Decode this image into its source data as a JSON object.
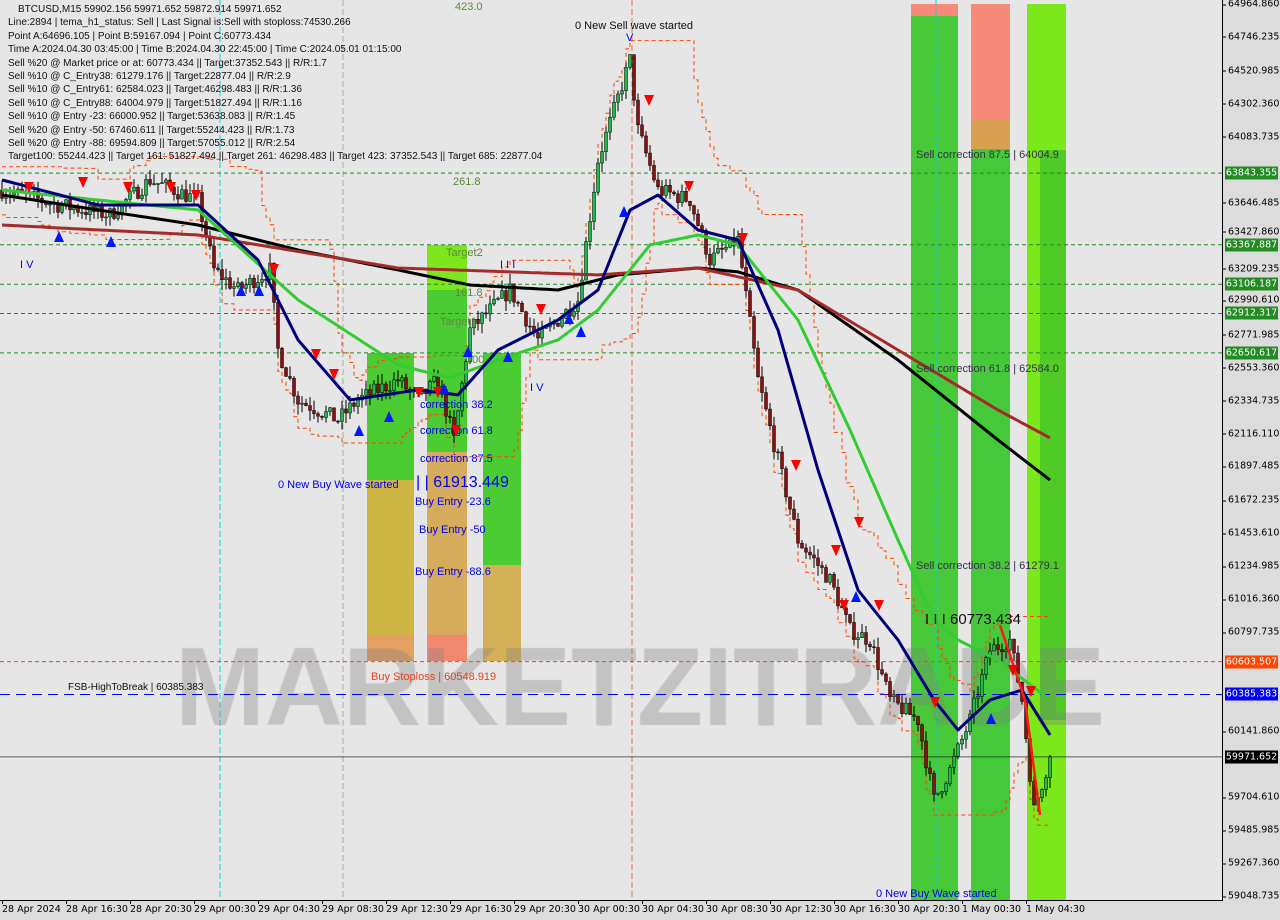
{
  "header": {
    "symbol_line": "BTCUSD,M15  59902.156 59971.652 59872.914 59971.652",
    "lines": [
      "Line:2894 | tema_h1_status: Sell | Last Signal is:Sell with stoploss:74530.266",
      "Point A:64696.105 | Point B:59167.094 | Point C:60773.434",
      "Time A:2024.04.30 03:45:00 | Time B:2024.04.30 22:45:00 | Time C:2024.05.01 01:15:00",
      "Sell %20 @ Market price or at: 60773.434 || Target:37352.543 || R/R:1.7",
      "Sell %10 @ C_Entry38: 61279.176 || Target:22877.04 || R/R:2.9",
      "Sell %10 @ C_Entry61: 62584.023 || Target:46298.483 || R/R:1.36",
      "Sell %10 @ C_Entry88: 64004.979 || Target:51827.494 || R/R:1.16",
      "Sell %10 @ Entry -23: 66000.952 || Target:53638.083 || R/R:1.45",
      "Sell %20 @ Entry -50: 67460.611 || Target:55244.423 || R/R:1.73",
      "Sell %20 @ Entry -88: 69594.809 || Target:57055.012 || R/R:2.54",
      "Target100: 55244.423 || Target 161: 51827.494 || Target 261: 46298.483 || Target 423: 37352.543 || Target 685: 22877.04"
    ]
  },
  "annotations": {
    "new_sell_wave": "0 New Sell wave started",
    "wave_v": "V",
    "fib_423": "423.0",
    "fib_261": "261.8",
    "target2": "Target2",
    "fib_161": "161.8",
    "target1": "Target1",
    "fib_100": "100",
    "wave_iii": "I I I",
    "wave_iv_left": "I V",
    "wave_iv_mid": "I V",
    "correction_38": "correction 38.2",
    "correction_61": "correction 61.8",
    "correction_87": "correction 87.5",
    "new_buy_wave": "0 New Buy Wave started",
    "buy_wave_price": "| | 61913.449",
    "buy_entry_23": "Buy Entry -23.6",
    "buy_entry_50": "Buy Entry -50",
    "buy_entry_88": "Buy Entry -88.6",
    "buy_stoploss": "Buy Stoploss | 60548.919",
    "fsb": "FSB-HighToBreak | 60385.383",
    "sell_corr_87": "Sell correction 87.5 | 64004.9",
    "sell_corr_61": "Sell correction 61.8 | 62584.0",
    "sell_corr_38": "Sell correction 38.2 | 61279.1",
    "wave_iii_price": "I I I 60773.434",
    "new_buy_wave_2": "0 New Buy Wave started"
  },
  "watermark": "MARKETZITRADE",
  "colors": {
    "ma_black": "#000000",
    "ma_brown": "#a52a2a",
    "ma_green": "#33cc33",
    "ma_navy": "#00007a",
    "bull": "#1fb84a",
    "bear": "#8b1010",
    "envelope": "#ff4500",
    "level_green": "#228b22",
    "stoploss": "#ff4500",
    "fsb": "#0000ff",
    "current": "#000000"
  },
  "chart_data": {
    "type": "candlestick",
    "symbol": "BTCUSD",
    "timeframe": "M15",
    "ylim": [
      59048.735,
      64964.86
    ],
    "grid": false,
    "yticks": [
      64964.86,
      64746.235,
      64520.985,
      64302.36,
      64083.735,
      63646.485,
      63427.86,
      63209.235,
      62990.61,
      62771.985,
      62553.36,
      62334.735,
      62116.11,
      61897.485,
      61672.235,
      61453.61,
      61234.985,
      61016.36,
      60797.735,
      60141.86,
      59704.61,
      59485.985,
      59267.36,
      59048.735
    ],
    "xticks": [
      {
        "label": "28 Apr 2024",
        "time": "2024-04-28 12:30"
      },
      {
        "label": "28 Apr 16:30",
        "time": "2024-04-28 16:30"
      },
      {
        "label": "28 Apr 20:30",
        "time": "2024-04-28 20:30"
      },
      {
        "label": "29 Apr 00:30",
        "time": "2024-04-29 00:30"
      },
      {
        "label": "29 Apr 04:30",
        "time": "2024-04-29 04:30"
      },
      {
        "label": "29 Apr 08:30",
        "time": "2024-04-29 08:30"
      },
      {
        "label": "29 Apr 12:30",
        "time": "2024-04-29 12:30"
      },
      {
        "label": "29 Apr 16:30",
        "time": "2024-04-29 16:30"
      },
      {
        "label": "29 Apr 20:30",
        "time": "2024-04-29 20:30"
      },
      {
        "label": "30 Apr 00:30",
        "time": "2024-04-30 00:30"
      },
      {
        "label": "30 Apr 04:30",
        "time": "2024-04-30 04:30"
      },
      {
        "label": "30 Apr 08:30",
        "time": "2024-04-30 08:30"
      },
      {
        "label": "30 Apr 12:30",
        "time": "2024-04-30 12:30"
      },
      {
        "label": "30 Apr 16:30",
        "time": "2024-04-30 16:30"
      },
      {
        "label": "30 Apr 20:30",
        "time": "2024-04-30 20:30"
      },
      {
        "label": "1 May 00:30",
        "time": "2024-05-01 00:30"
      },
      {
        "label": "1 May 04:30",
        "time": "2024-05-01 04:30"
      }
    ],
    "levels": [
      {
        "value": 63843.355,
        "label": "63843.355",
        "color": "#228b22",
        "style": "dashed"
      },
      {
        "value": 63367.887,
        "label": "63367.887",
        "color": "#228b22",
        "style": "dashed"
      },
      {
        "value": 63106.187,
        "label": "63106.187",
        "color": "#228b22",
        "style": "dashed"
      },
      {
        "value": 62912.317,
        "label": "62912.317",
        "color": "#228b22",
        "style": "dashed"
      },
      {
        "value": 62650.617,
        "label": "62650.617",
        "color": "#228b22",
        "style": "dashed"
      },
      {
        "value": 60603.507,
        "label": "60603.507",
        "color": "#ff4500",
        "style": "dashed"
      },
      {
        "value": 60385.383,
        "label": "60385.383",
        "color": "#0000ff",
        "style": "longdash"
      },
      {
        "value": 59971.652,
        "label": "59971.652",
        "color": "#000000",
        "style": "solid"
      }
    ],
    "close_path": [
      [
        "2024-04-28 12:30",
        63731
      ],
      [
        "2024-04-28 16:00",
        63632
      ],
      [
        "2024-04-28 19:15",
        63566
      ],
      [
        "2024-04-28 21:45",
        63798
      ],
      [
        "2024-04-29 00:45",
        63665
      ],
      [
        "2024-04-29 01:45",
        63201
      ],
      [
        "2024-04-29 03:15",
        63068
      ],
      [
        "2024-04-29 05:15",
        63201
      ],
      [
        "2024-04-29 05:45",
        62670
      ],
      [
        "2024-04-29 07:00",
        62339
      ],
      [
        "2024-04-29 09:30",
        62206
      ],
      [
        "2024-04-29 10:45",
        62339
      ],
      [
        "2024-04-29 13:15",
        62471
      ],
      [
        "2024-04-29 14:30",
        62339
      ],
      [
        "2024-04-29 15:45",
        62471
      ],
      [
        "2024-04-29 16:45",
        62073
      ],
      [
        "2024-04-29 17:45",
        62803
      ],
      [
        "2024-04-29 20:15",
        63068
      ],
      [
        "2024-04-29 22:00",
        62737
      ],
      [
        "2024-04-30 00:30",
        63002
      ],
      [
        "2024-04-30 01:45",
        63930
      ],
      [
        "2024-04-30 03:45",
        64593
      ],
      [
        "2024-04-30 04:15",
        64129
      ],
      [
        "2024-04-30 05:30",
        63731
      ],
      [
        "2024-04-30 07:30",
        63665
      ],
      [
        "2024-04-30 08:45",
        63267
      ],
      [
        "2024-04-30 10:30",
        63400
      ],
      [
        "2024-04-30 11:45",
        62471
      ],
      [
        "2024-04-30 13:00",
        61941
      ],
      [
        "2024-04-30 14:15",
        61410
      ],
      [
        "2024-04-30 16:15",
        61145
      ],
      [
        "2024-04-30 17:30",
        60813
      ],
      [
        "2024-04-30 18:45",
        60747
      ],
      [
        "2024-04-30 20:00",
        60349
      ],
      [
        "2024-04-30 21:45",
        60216
      ],
      [
        "2024-04-30 22:45",
        59686
      ],
      [
        "2024-04-30 23:45",
        59885
      ],
      [
        "2024-05-01 01:00",
        60216
      ],
      [
        "2024-05-01 02:15",
        60680
      ],
      [
        "2024-05-01 03:30",
        60747
      ],
      [
        "2024-05-01 04:15",
        60349
      ],
      [
        "2024-05-01 05:00",
        59619
      ],
      [
        "2024-05-01 06:00",
        59971.652
      ]
    ],
    "moving_averages": [
      {
        "color": "#000000",
        "points": [
          [
            "2024-04-28 12:30",
            63698
          ],
          [
            "2024-04-28 18:30",
            63599
          ],
          [
            "2024-04-29 00:45",
            63499
          ],
          [
            "2024-04-29 07:00",
            63333
          ],
          [
            "2024-04-29 13:15",
            63201
          ],
          [
            "2024-04-29 17:45",
            63101
          ],
          [
            "2024-04-29 23:15",
            63068
          ],
          [
            "2024-04-30 03:00",
            63168
          ],
          [
            "2024-04-30 08:00",
            63214
          ],
          [
            "2024-04-30 10:30",
            63188
          ],
          [
            "2024-04-30 14:15",
            63068
          ],
          [
            "2024-04-30 20:30",
            62604
          ],
          [
            "2024-05-01 02:45",
            62073
          ],
          [
            "2024-05-01 06:00",
            61808
          ]
        ]
      },
      {
        "color": "#a52a2a",
        "points": [
          [
            "2024-04-28 12:30",
            63499
          ],
          [
            "2024-04-29 00:45",
            63433
          ],
          [
            "2024-04-29 13:15",
            63214
          ],
          [
            "2024-04-30 01:45",
            63168
          ],
          [
            "2024-04-30 08:00",
            63214
          ],
          [
            "2024-04-30 14:15",
            63068
          ],
          [
            "2024-04-30 20:30",
            62670
          ],
          [
            "2024-05-01 02:45",
            62272
          ],
          [
            "2024-05-01 06:00",
            62087
          ]
        ]
      },
      {
        "color": "#33cc33",
        "points": [
          [
            "2024-04-28 12:30",
            63731
          ],
          [
            "2024-04-28 18:30",
            63665
          ],
          [
            "2024-04-29 00:45",
            63599
          ],
          [
            "2024-04-29 07:00",
            63002
          ],
          [
            "2024-04-29 13:15",
            62571
          ],
          [
            "2024-04-29 16:30",
            62484
          ],
          [
            "2024-04-29 19:30",
            62604
          ],
          [
            "2024-04-29 23:15",
            62737
          ],
          [
            "2024-04-30 01:45",
            62935
          ],
          [
            "2024-04-30 05:00",
            63367
          ],
          [
            "2024-04-30 08:00",
            63433
          ],
          [
            "2024-04-30 10:30",
            63367
          ],
          [
            "2024-04-30 14:15",
            62869
          ],
          [
            "2024-04-30 17:30",
            62140
          ],
          [
            "2024-04-30 20:30",
            61410
          ],
          [
            "2024-04-30 22:45",
            60879
          ],
          [
            "2024-05-01 00:15",
            60747
          ],
          [
            "2024-05-01 02:45",
            60614
          ],
          [
            "2024-05-01 06:00",
            60349
          ]
        ]
      },
      {
        "color": "#00007a",
        "points": [
          [
            "2024-04-28 12:30",
            63798
          ],
          [
            "2024-04-28 18:30",
            63632
          ],
          [
            "2024-04-29 00:45",
            63632
          ],
          [
            "2024-04-29 04:30",
            63267
          ],
          [
            "2024-04-29 07:00",
            62737
          ],
          [
            "2024-04-29 10:15",
            62339
          ],
          [
            "2024-04-29 14:30",
            62405
          ],
          [
            "2024-04-29 17:00",
            62372
          ],
          [
            "2024-04-29 19:30",
            62670
          ],
          [
            "2024-04-29 23:15",
            62869
          ],
          [
            "2024-04-30 01:45",
            63068
          ],
          [
            "2024-04-30 03:45",
            63598
          ],
          [
            "2024-04-30 05:30",
            63698
          ],
          [
            "2024-04-30 08:00",
            63466
          ],
          [
            "2024-04-30 10:30",
            63400
          ],
          [
            "2024-04-30 13:00",
            62803
          ],
          [
            "2024-04-30 15:30",
            61874
          ],
          [
            "2024-04-30 18:00",
            61078
          ],
          [
            "2024-04-30 20:30",
            60747
          ],
          [
            "2024-04-30 22:45",
            60349
          ],
          [
            "2024-05-01 00:15",
            60150
          ],
          [
            "2024-05-01 02:15",
            60349
          ],
          [
            "2024-05-01 04:15",
            60415
          ],
          [
            "2024-05-01 06:00",
            60117
          ]
        ]
      }
    ]
  }
}
